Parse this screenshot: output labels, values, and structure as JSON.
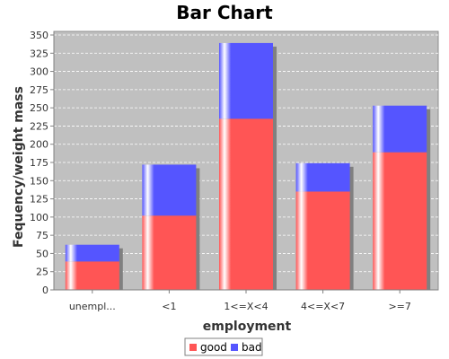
{
  "chart_data": {
    "type": "bar",
    "stacked": true,
    "title": "Bar Chart",
    "xlabel": "employment",
    "ylabel": "Fequency/weight mass",
    "categories": [
      "unempl...",
      "<1",
      "1<=X<4",
      "4<=X<7",
      ">=7"
    ],
    "series": [
      {
        "name": "good",
        "color": "#ff5555",
        "values": [
          39,
          102,
          235,
          135,
          189
        ]
      },
      {
        "name": "bad",
        "color": "#5555ff",
        "values": [
          23,
          70,
          104,
          39,
          64
        ]
      }
    ],
    "ylim": [
      0,
      350
    ],
    "yticks": [
      0,
      25,
      50,
      75,
      100,
      125,
      150,
      175,
      200,
      225,
      250,
      275,
      300,
      325,
      350
    ],
    "grid": true,
    "legend": "bottom",
    "plot_background": "#c0c0c0"
  }
}
